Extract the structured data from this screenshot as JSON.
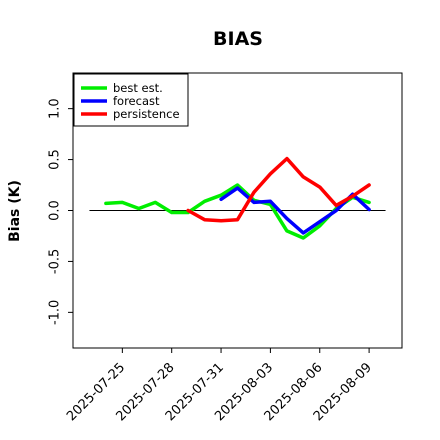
{
  "chart_data": {
    "type": "line",
    "title": "BIAS",
    "xlabel": "",
    "ylabel": "Bias (K)",
    "ylim": [
      -1.35,
      1.35
    ],
    "yticks": [
      -1.0,
      -0.5,
      0.0,
      0.5,
      1.0
    ],
    "ytick_labels": [
      "-1.0",
      "-0.5",
      "0.0",
      "0.5",
      "1.0"
    ],
    "xticks": [
      {
        "date": "2025-07-25",
        "label": "2025-07-25",
        "color": "#000000"
      },
      {
        "date": "2025-07-28",
        "label": "2025-07-28",
        "color": "#000000"
      },
      {
        "date": "2025-07-31",
        "label": "2025-07-31",
        "color": "#228b22"
      },
      {
        "date": "2025-08-03",
        "label": "2025-08-03",
        "color": "#000000"
      },
      {
        "date": "2025-08-06",
        "label": "2025-08-06",
        "color": "#000000"
      },
      {
        "date": "2025-08-09",
        "label": "2025-08-09",
        "color": "#000000"
      }
    ],
    "xlim": [
      "2025-07-22",
      "2025-08-11"
    ],
    "zero_line": true,
    "grid": false,
    "legend_position": "top-left",
    "series": [
      {
        "name": "best est.",
        "color": "#00ee00",
        "points": [
          [
            "2025-07-24",
            0.07
          ],
          [
            "2025-07-25",
            0.08
          ],
          [
            "2025-07-26",
            0.02
          ],
          [
            "2025-07-27",
            0.08
          ],
          [
            "2025-07-28",
            -0.02
          ],
          [
            "2025-07-29",
            -0.02
          ],
          [
            "2025-07-30",
            0.09
          ],
          [
            "2025-07-31",
            0.15
          ],
          [
            "2025-08-01",
            0.25
          ],
          [
            "2025-08-02",
            0.1
          ],
          [
            "2025-08-03",
            0.06
          ],
          [
            "2025-08-04",
            -0.2
          ],
          [
            "2025-08-05",
            -0.27
          ],
          [
            "2025-08-06",
            -0.15
          ],
          [
            "2025-08-07",
            0.02
          ],
          [
            "2025-08-08",
            0.13
          ],
          [
            "2025-08-09",
            0.08
          ]
        ]
      },
      {
        "name": "forecast",
        "color": "#0000ff",
        "points": [
          [
            "2025-07-31",
            0.11
          ],
          [
            "2025-08-01",
            0.22
          ],
          [
            "2025-08-02",
            0.08
          ],
          [
            "2025-08-03",
            0.09
          ],
          [
            "2025-08-04",
            -0.08
          ],
          [
            "2025-08-05",
            -0.22
          ],
          [
            "2025-08-06",
            -0.11
          ],
          [
            "2025-08-07",
            0.0
          ],
          [
            "2025-08-08",
            0.16
          ],
          [
            "2025-08-09",
            0.01
          ]
        ]
      },
      {
        "name": "persistence",
        "color": "#ff0000",
        "points": [
          [
            "2025-07-29",
            0.0
          ],
          [
            "2025-07-30",
            -0.09
          ],
          [
            "2025-07-31",
            -0.1
          ],
          [
            "2025-08-01",
            -0.09
          ],
          [
            "2025-08-02",
            0.18
          ],
          [
            "2025-08-03",
            0.36
          ],
          [
            "2025-08-04",
            0.51
          ],
          [
            "2025-08-05",
            0.33
          ],
          [
            "2025-08-06",
            0.23
          ],
          [
            "2025-08-07",
            0.05
          ],
          [
            "2025-08-08",
            0.14
          ],
          [
            "2025-08-09",
            0.25
          ]
        ]
      }
    ]
  }
}
